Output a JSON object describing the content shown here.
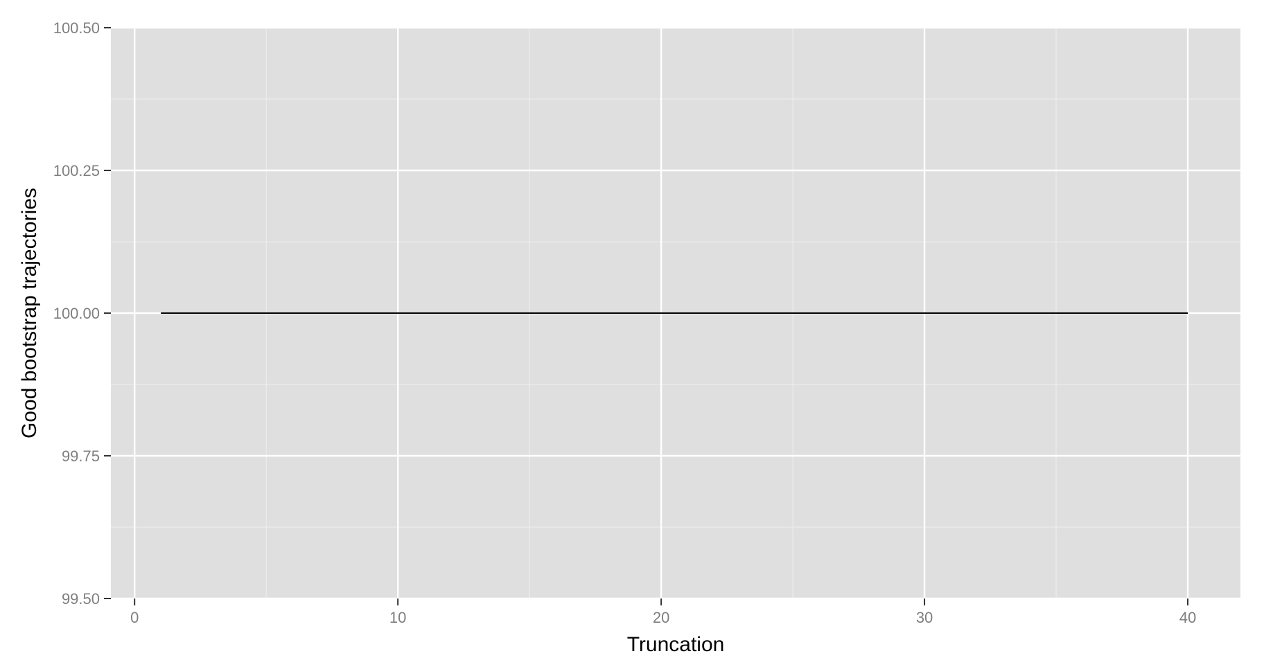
{
  "chart_data": {
    "type": "line",
    "title": "",
    "xlabel": "Truncation",
    "ylabel": "Good bootstrap trajectories",
    "xlim": [
      -0.9,
      42
    ],
    "ylim": [
      99.5,
      100.5
    ],
    "x_ticks": [
      0,
      10,
      20,
      30,
      40
    ],
    "x_tick_labels": [
      "0",
      "10",
      "20",
      "30",
      "40"
    ],
    "y_ticks": [
      99.5,
      99.75,
      100.0,
      100.25,
      100.5
    ],
    "y_tick_labels": [
      "99.50",
      "99.75",
      "100.00",
      "100.25",
      "100.50"
    ],
    "x_minor": [
      5,
      15,
      25,
      35
    ],
    "y_minor": [
      99.625,
      99.875,
      100.125,
      100.375
    ],
    "grid": true,
    "series": [
      {
        "x": [
          1,
          40
        ],
        "y": [
          100.0,
          100.0
        ]
      }
    ]
  },
  "colors": {
    "panel_background": "#dfdfdf",
    "grid_major": "#ffffff",
    "grid_minor": "#ececec",
    "line": "#000000",
    "tick_text": "#7f7f7f",
    "axis_title": "#000000"
  }
}
